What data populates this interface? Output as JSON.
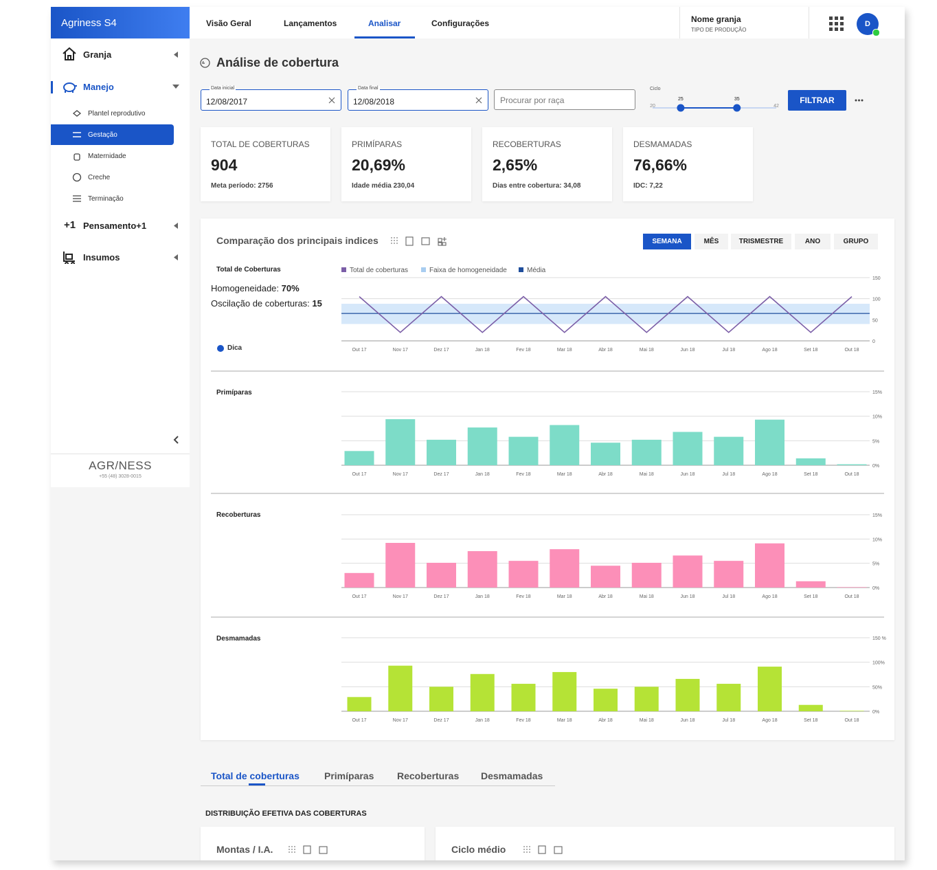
{
  "sidebar": {
    "brand": "Agriness S4",
    "menu": [
      {
        "label": "Granja"
      },
      {
        "label": "Manejo",
        "children": [
          "Plantel reprodutivo",
          "Gestação",
          "Maternidade",
          "Creche",
          "Terminação"
        ]
      },
      {
        "label": "Pensamento+1",
        "prefix": "+1"
      },
      {
        "label": "Insumos"
      }
    ],
    "footer": {
      "logo": "AGR/NESS",
      "phone": "+55 (48) 3028-0015"
    }
  },
  "nav": {
    "tabs": [
      "Visão Geral",
      "Lançamentos",
      "Analisar",
      "Configurações"
    ],
    "farm": "Nome granja",
    "farm_type": "TIPO DE PRODUÇÃO",
    "avatar": "D"
  },
  "page": {
    "title": "Análise de cobertura"
  },
  "filters": {
    "start_label": "Data inicial",
    "start": "12/08/2017",
    "end_label": "Data final",
    "end": "12/08/2018",
    "search": "Procurar por raça",
    "cycle_label": "Ciclo",
    "cycle_min": 20,
    "cycle_max": 42,
    "cycle_values": [
      25,
      35
    ],
    "button": "FILTRAR"
  },
  "kpis": [
    {
      "label": "TOTAL DE COBERTURAS",
      "value": "904",
      "sub": "Meta período: 2756"
    },
    {
      "label": "PRIMÍPARAS",
      "value": "20,69%",
      "sub": "Idade média 230,04"
    },
    {
      "label": "RECOBERTURAS",
      "value": "2,65%",
      "sub": "Dias entre cobertura: 34,08"
    },
    {
      "label": "DESMAMADAS",
      "value": "76,66%",
      "sub": "IDC: 7,22"
    }
  ],
  "comparison": {
    "title": "Comparação dos principais indices",
    "periods": [
      "SEMANA",
      "MÊS",
      "TRISMESTRE",
      "ANO",
      "GRUPO"
    ],
    "stats": {
      "homog_label": "Homogeneidade:",
      "homog": "70%",
      "osc_label": "Oscilação de coberturas:",
      "osc": "15",
      "tip": "Dica"
    },
    "charts": [
      {
        "type": "line",
        "title": "Total de Coberturas",
        "categories": [
          "Out 17",
          "Nov 17",
          "Dez 17",
          "Jan 18",
          "Fev 18",
          "Mar 18",
          "Abr 18",
          "Mai 18",
          "Jun 18",
          "Jul 18",
          "Ago 18",
          "Set 18",
          "Out 18"
        ],
        "series": [
          {
            "name": "Total de coberturas",
            "color": "#7b5ea7",
            "values": [
              105,
              20,
              105,
              20,
              105,
              20,
              105,
              20,
              105,
              20,
              105,
              20,
              105
            ]
          }
        ],
        "band": {
          "name": "Faixa de homogeneidade",
          "color": "#a8cdf0",
          "values": [
            40,
            88
          ]
        },
        "mean": {
          "name": "Média",
          "color": "#1f4e9c",
          "value": 65
        },
        "ylim": [
          0,
          150
        ],
        "yticks": [
          0,
          50,
          100,
          150
        ]
      },
      {
        "type": "bar",
        "title": "Primíparas",
        "color": "#7ddcc8",
        "categories": [
          "Out 17",
          "Nov 17",
          "Dez 17",
          "Jan 18",
          "Fev 18",
          "Mar 18",
          "Abr 18",
          "Mai 18",
          "Jun 18",
          "Jul 18",
          "Ago 18",
          "Set 18",
          "Out 18"
        ],
        "values": [
          2.9,
          9.4,
          5.2,
          7.7,
          5.8,
          8.2,
          4.6,
          5.2,
          6.8,
          5.8,
          9.3,
          1.4,
          0.2
        ],
        "ylim": [
          0,
          15
        ],
        "yticks": [
          {
            "value": 0,
            "label": "0%"
          },
          {
            "value": 5,
            "label": "5%"
          },
          {
            "value": 10,
            "label": "10%"
          },
          {
            "value": 15,
            "label": "15%"
          }
        ]
      },
      {
        "type": "bar",
        "title": "Recoberturas",
        "color": "#fc8fb8",
        "categories": [
          "Out 17",
          "Nov 17",
          "Dez 17",
          "Jan 18",
          "Fev 18",
          "Mar 18",
          "Abr 18",
          "Mai 18",
          "Jun 18",
          "Jul 18",
          "Ago 18",
          "Set 18",
          "Out 18"
        ],
        "values": [
          3.0,
          9.2,
          5.1,
          7.5,
          5.5,
          7.9,
          4.5,
          5.1,
          6.6,
          5.5,
          9.1,
          1.3,
          0.1
        ],
        "ylim": [
          0,
          15
        ],
        "yticks": [
          {
            "value": 0,
            "label": "0%"
          },
          {
            "value": 5,
            "label": "5%"
          },
          {
            "value": 10,
            "label": "10%"
          },
          {
            "value": 15,
            "label": "15%"
          }
        ]
      },
      {
        "type": "bar",
        "title": "Desmamadas",
        "color": "#b5e336",
        "categories": [
          "Out 17",
          "Nov 17",
          "Dez 17",
          "Jan 18",
          "Fev 18",
          "Mar 18",
          "Abr 18",
          "Mai 18",
          "Jun 18",
          "Jul 18",
          "Ago 18",
          "Set 18",
          "Out 18"
        ],
        "values": [
          29,
          93,
          50,
          76,
          56,
          80,
          46,
          50,
          66,
          56,
          91,
          13,
          1
        ],
        "ylim": [
          0,
          150
        ],
        "yticks": [
          {
            "value": 0,
            "label": "0%"
          },
          {
            "value": 50,
            "label": "50%"
          },
          {
            "value": 100,
            "label": "100%"
          },
          {
            "value": 150,
            "label": "150 %"
          }
        ]
      }
    ]
  },
  "bottom": {
    "tabs": [
      "Total de coberturas",
      "Primíparas",
      "Recoberturas",
      "Desmamadas"
    ],
    "section": "DISTRIBUIÇÃO EFETIVA DAS COBERTURAS",
    "cards": [
      "Montas / I.A.",
      "Ciclo médio"
    ]
  }
}
